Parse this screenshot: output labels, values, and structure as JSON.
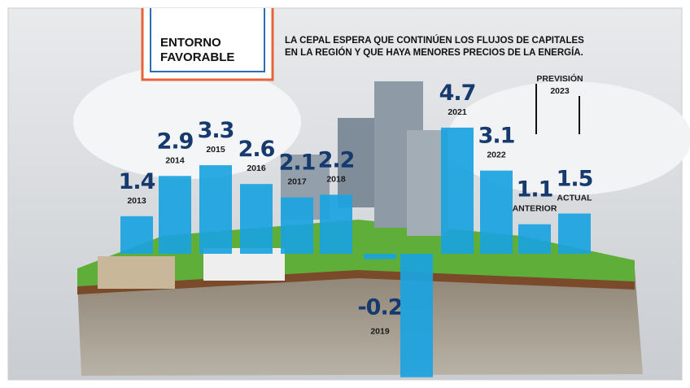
{
  "chart_data": {
    "type": "bar",
    "title": [
      "ENTORNO",
      "FAVORABLE"
    ],
    "subtitle": [
      "LA CEPAL ESPERA QUE CONTINÚEN LOS FLUJOS DE CAPITALES",
      "EN LA REGIÓN Y QUE HAYA MENORES PRECIOS DE LA ENERGÍA."
    ],
    "annotation": [
      "PREVISIÓN",
      "2023"
    ],
    "categories": [
      "2013",
      "2014",
      "2015",
      "2016",
      "2017",
      "2018",
      "2019",
      null,
      "2021",
      "2022",
      "ANTERIOR",
      "ACTUAL"
    ],
    "values": [
      1.4,
      2.9,
      3.3,
      2.6,
      2.1,
      2.2,
      -0.2,
      -4.6,
      4.7,
      3.1,
      1.1,
      1.5
    ],
    "color": "#1aa3e0"
  }
}
